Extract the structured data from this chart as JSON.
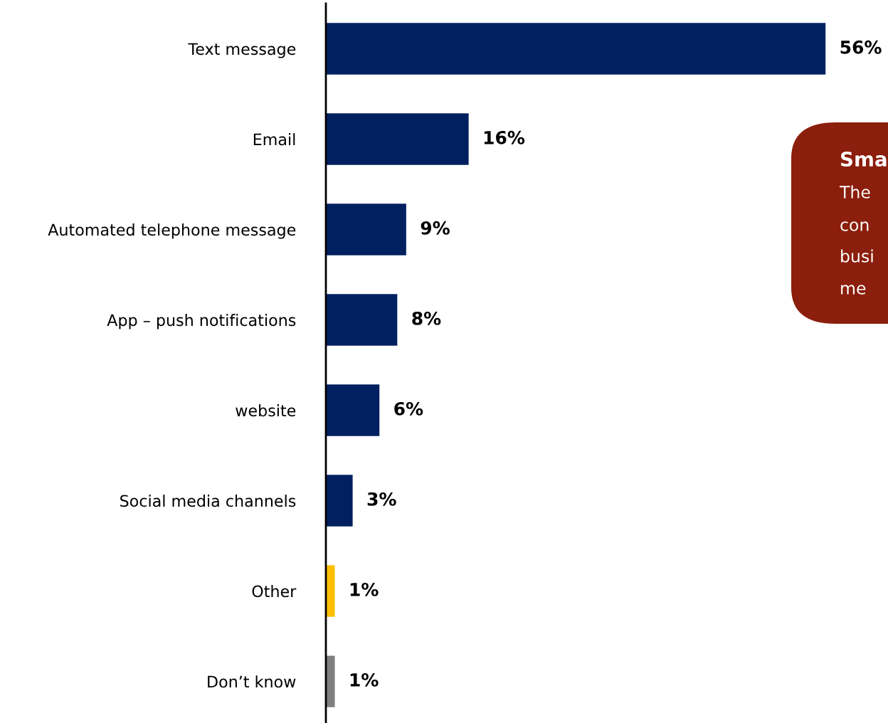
{
  "chart_data": {
    "type": "bar",
    "orientation": "horizontal",
    "categories": [
      "Text message",
      "Email",
      "Automated telephone message",
      "App – push notifications",
      "website",
      "Social media channels",
      "Other",
      "Don’t know"
    ],
    "values": [
      56,
      16,
      9,
      8,
      6,
      3,
      1,
      1
    ],
    "colors": [
      "#002060",
      "#002060",
      "#002060",
      "#002060",
      "#002060",
      "#002060",
      "#ffc000",
      "#7f7f7f"
    ],
    "value_labels": [
      "56%",
      "16%",
      "9%",
      "8%",
      "6%",
      "3%",
      "1%",
      "1%"
    ],
    "tick_labels": "y",
    "grid": false,
    "legend": false,
    "annotations": [
      "Sma",
      "The",
      "con",
      "busi",
      "me"
    ]
  }
}
